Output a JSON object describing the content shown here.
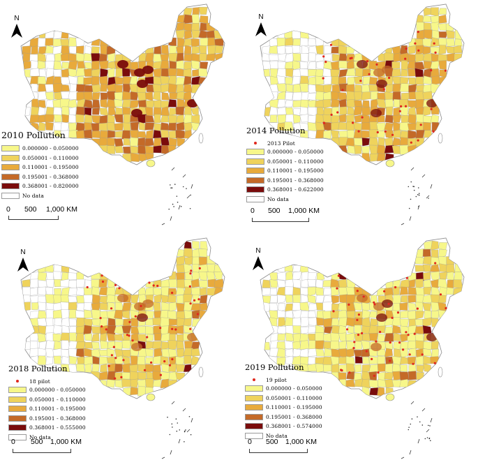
{
  "colors": {
    "class1": "#f7f78a",
    "class2": "#efd35c",
    "class3": "#e8aa3c",
    "class4": "#c46a28",
    "class5": "#7a0c0c",
    "nodata": "#ffffff",
    "pilot": "#e0281e",
    "outline": "#8a8a8a"
  },
  "panels": [
    {
      "title": "2010 Pollution",
      "pilot_label": null,
      "classes": [
        "0.000000 - 0.050000",
        "0.050001 - 0.110000",
        "0.110001 - 0.195000",
        "0.195001 - 0.368000",
        "0.368001 - 0.820000"
      ],
      "nodata_label": "No data",
      "north_label": "N",
      "scale": {
        "labels": [
          "0",
          "500",
          "1,000 KM"
        ]
      },
      "palette_mix": "dark",
      "pilot_count": 0
    },
    {
      "title": "2014 Pollution",
      "pilot_label": "2013 Pilot",
      "classes": [
        "0.000000 - 0.050000",
        "0.050001 - 0.110000",
        "0.110001 - 0.195000",
        "0.195001 - 0.368000",
        "0.368001 - 0.622000"
      ],
      "nodata_label": "No data",
      "north_label": "N",
      "scale": {
        "labels": [
          "0",
          "500",
          "1,000 KM"
        ]
      },
      "palette_mix": "medium",
      "pilot_count": 40
    },
    {
      "title": "2018 Pollution",
      "pilot_label": "18 pilot",
      "classes": [
        "0.000000 - 0.050000",
        "0.050001 - 0.110000",
        "0.110001 - 0.195000",
        "0.195001 - 0.368000",
        "0.368001 - 0.555000"
      ],
      "nodata_label": "No data",
      "north_label": "N",
      "scale": {
        "labels": [
          "0",
          "500",
          "1,000 KM"
        ]
      },
      "palette_mix": "light",
      "pilot_count": 45
    },
    {
      "title": "2019 Pollution",
      "pilot_label": "19 pilot",
      "classes": [
        "0.000000 - 0.050000",
        "0.050001 - 0.110000",
        "0.110001 - 0.195000",
        "0.195001 - 0.368000",
        "0.368001 - 0.574000"
      ],
      "nodata_label": "No data",
      "north_label": "N",
      "scale": {
        "labels": [
          "0",
          "500",
          "1,000 KM"
        ]
      },
      "palette_mix": "light",
      "pilot_count": 45
    }
  ]
}
